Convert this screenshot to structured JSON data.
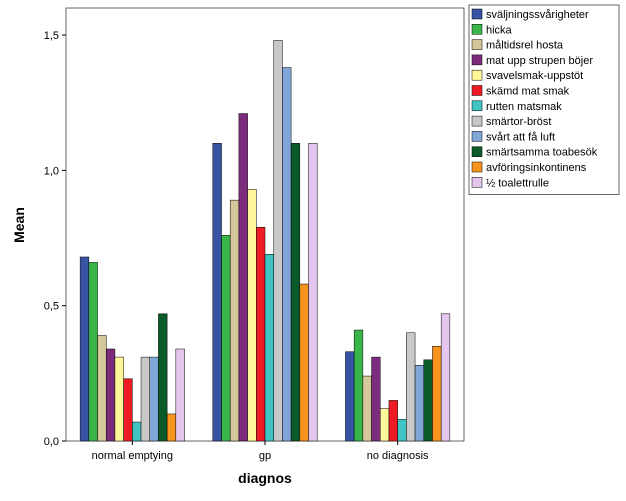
{
  "chart_data": {
    "type": "bar",
    "xlabel": "diagnos",
    "ylabel": "Mean",
    "ylim": [
      0,
      1.6
    ],
    "yticks": [
      0,
      0.5,
      1.0,
      1.5
    ],
    "ytick_labels": [
      "0,0",
      "0,5",
      "1,0",
      "1,5"
    ],
    "grid": false,
    "legend_position": "top-right",
    "categories": [
      "normal emptying",
      "gp",
      "no diagnosis"
    ],
    "series": [
      {
        "name": "sväljningssvårigheter",
        "color": "#3953a4",
        "values": [
          0.68,
          1.1,
          0.33
        ]
      },
      {
        "name": "hicka",
        "color": "#39b54a",
        "values": [
          0.66,
          0.76,
          0.41
        ]
      },
      {
        "name": "måltidsrel hosta",
        "color": "#d4c79a",
        "values": [
          0.39,
          0.89,
          0.24
        ]
      },
      {
        "name": "mat upp strupen böjer",
        "color": "#7b2c7c",
        "values": [
          0.34,
          1.21,
          0.31
        ]
      },
      {
        "name": "svavelsmak-uppstöt",
        "color": "#fff799",
        "values": [
          0.31,
          0.93,
          0.12
        ]
      },
      {
        "name": "skämd mat smak",
        "color": "#ed1c24",
        "values": [
          0.23,
          0.79,
          0.15
        ]
      },
      {
        "name": "rutten matsmak",
        "color": "#40c4c4",
        "values": [
          0.07,
          0.69,
          0.08
        ]
      },
      {
        "name": "smärtor-bröst",
        "color": "#c8c8c8",
        "values": [
          0.31,
          1.48,
          0.4
        ]
      },
      {
        "name": "svårt att få luft",
        "color": "#7fa6d6",
        "values": [
          0.31,
          1.38,
          0.28
        ]
      },
      {
        "name": "smärtsamma toabesök",
        "color": "#0b5a2a",
        "values": [
          0.47,
          1.1,
          0.3
        ]
      },
      {
        "name": "avföringsinkontinens",
        "color": "#f7941d",
        "values": [
          0.1,
          0.58,
          0.35
        ]
      },
      {
        "name": "½ toalettrulle",
        "color": "#e2c6ee",
        "values": [
          0.34,
          1.1,
          0.47
        ]
      }
    ]
  }
}
